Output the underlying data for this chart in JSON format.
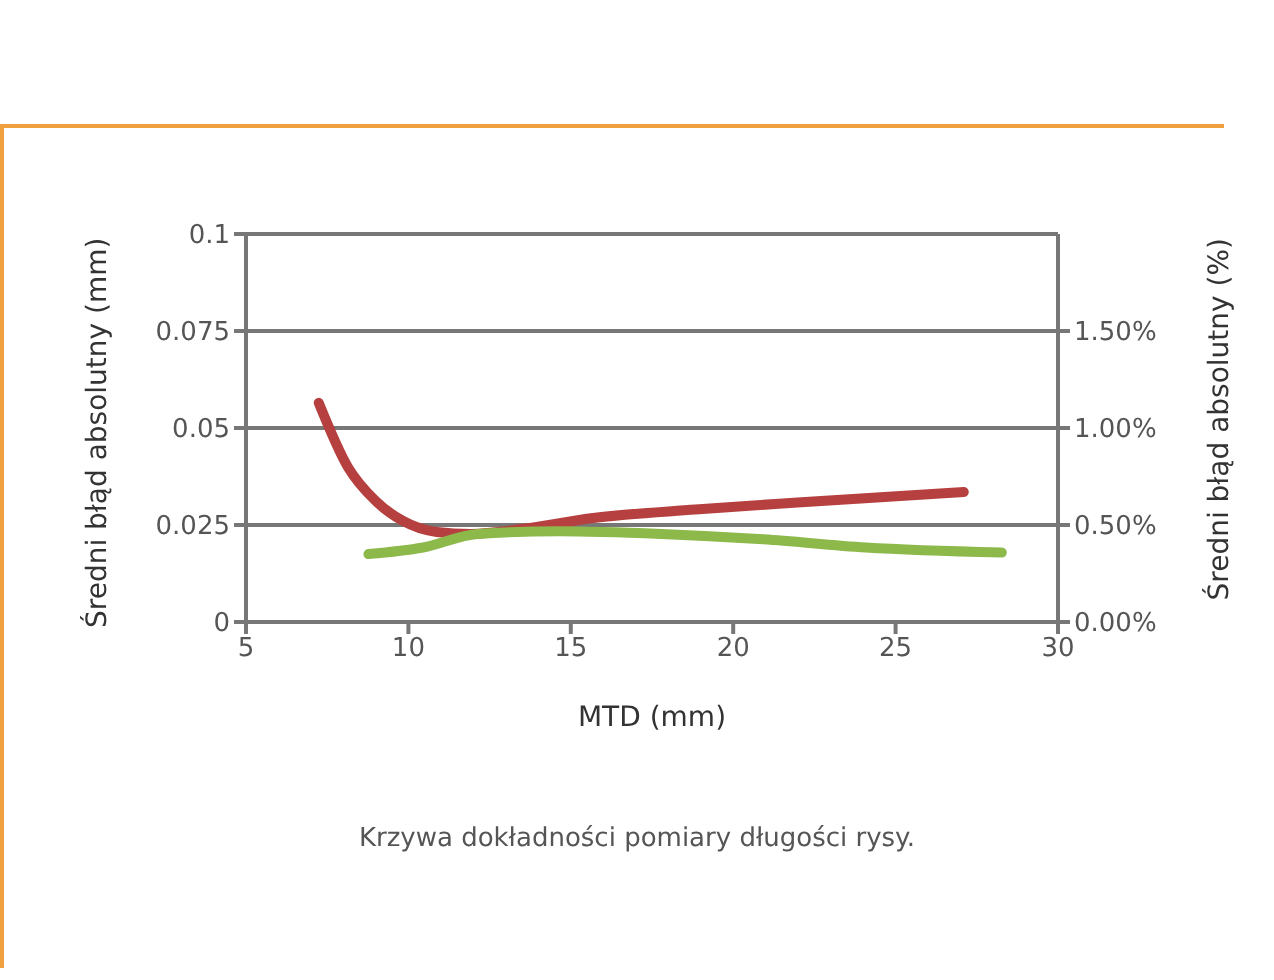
{
  "chart_data": {
    "type": "line",
    "xlabel": "MTD (mm)",
    "ylabel": "Średni błąd absolutny (mm)",
    "y2label": "Średni błąd absolutny (%)",
    "annotations": [
      "Krzywa dokładności pomiary długości rysy."
    ],
    "xlim": [
      5,
      30
    ],
    "xticks": [
      5,
      10,
      15,
      20,
      25,
      30
    ],
    "ylim": [
      0,
      0.1
    ],
    "yticks": [
      0,
      0.025,
      0.05,
      0.075,
      0.1
    ],
    "y2lim": [
      0,
      2
    ],
    "y2ticks": [
      {
        "value": 0,
        "label": "0.00%"
      },
      {
        "value": 0.5,
        "label": "0.50%"
      },
      {
        "value": 1,
        "label": "1.00%"
      },
      {
        "value": 1.5,
        "label": "1.50%"
      }
    ],
    "grid": "y",
    "legend": false,
    "marker": "none",
    "line_style": "solid",
    "series": [
      {
        "color": "#b5403f",
        "x": [
          7.24,
          8.14,
          8.98,
          9.82,
          10.87,
          11.92,
          13.6,
          15.69,
          18.84,
          21.98,
          27.1
        ],
        "values": [
          0.0565,
          0.0399,
          0.0313,
          0.0261,
          0.0232,
          0.0227,
          0.0241,
          0.0268,
          0.029,
          0.0308,
          0.0335
        ]
      },
      {
        "color": "#8db84a",
        "x": [
          8.77,
          10.45,
          12.13,
          14.64,
          17.79,
          20.93,
          24.08,
          28.27
        ],
        "values": [
          0.0175,
          0.0192,
          0.0227,
          0.0234,
          0.0227,
          0.0213,
          0.0192,
          0.0179
        ]
      }
    ]
  }
}
